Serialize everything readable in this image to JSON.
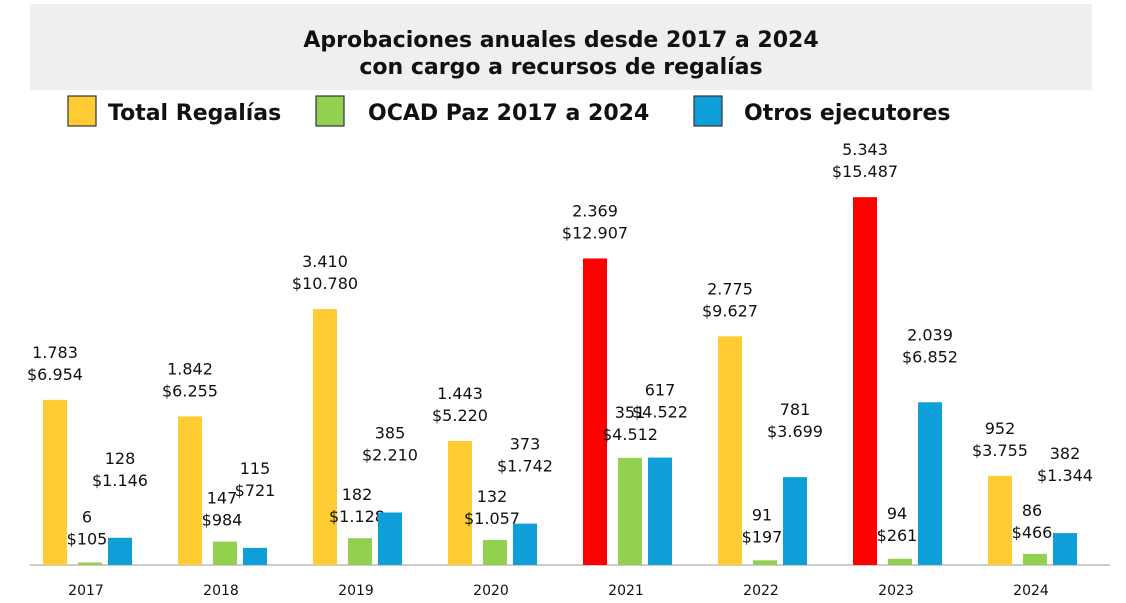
{
  "chart_data": {
    "type": "bar",
    "title": [
      "Aprobaciones anuales desde 2017 a 2024",
      "con cargo a recursos de regalías"
    ],
    "categories": [
      "2017",
      "2018",
      "2019",
      "2020",
      "2021",
      "2022",
      "2023",
      "2024"
    ],
    "ylim": [
      0,
      16000
    ],
    "grid": false,
    "legend_position": "top",
    "series": [
      {
        "name": "Total Regalías",
        "color": "#FFCC33",
        "highlight_color": "#FF0000",
        "highlight_categories": [
          "2021",
          "2023"
        ],
        "values": [
          6954,
          6255,
          10780,
          5220,
          12907,
          9627,
          15487,
          3755
        ],
        "labels": [
          [
            "1.783",
            "$6.954"
          ],
          [
            "1.842",
            "$6.255"
          ],
          [
            "3.410",
            "$10.780"
          ],
          [
            "1.443",
            "$5.220"
          ],
          [
            "2.369",
            "$12.907"
          ],
          [
            "2.775",
            "$9.627"
          ],
          [
            "5.343",
            "$15.487"
          ],
          [
            "952",
            "$3.755"
          ]
        ]
      },
      {
        "name": "OCAD Paz 2017 a 2024",
        "color": "#92D050",
        "values": [
          105,
          984,
          1128,
          1057,
          4512,
          197,
          261,
          466
        ],
        "labels": [
          [
            "6",
            "$105"
          ],
          [
            "147",
            "$984"
          ],
          [
            "182",
            "$1.128"
          ],
          [
            "132",
            "$1.057"
          ],
          [
            "351",
            "$4.512"
          ],
          [
            "91",
            "$197"
          ],
          [
            "94",
            "$261"
          ],
          [
            "86",
            "$466"
          ]
        ]
      },
      {
        "name": "Otros ejecutores",
        "color": "#0E9FD8",
        "values": [
          1146,
          721,
          2210,
          1742,
          4522,
          3699,
          6852,
          1344
        ],
        "labels": [
          [
            "128",
            "$1.146"
          ],
          [
            "115",
            "$721"
          ],
          [
            "385",
            "$2.210"
          ],
          [
            "373",
            "$1.742"
          ],
          [
            "617",
            "$4.522"
          ],
          [
            "781",
            "$3.699"
          ],
          [
            "2.039",
            "$6.852"
          ],
          [
            "382",
            "$1.344"
          ]
        ]
      }
    ]
  }
}
